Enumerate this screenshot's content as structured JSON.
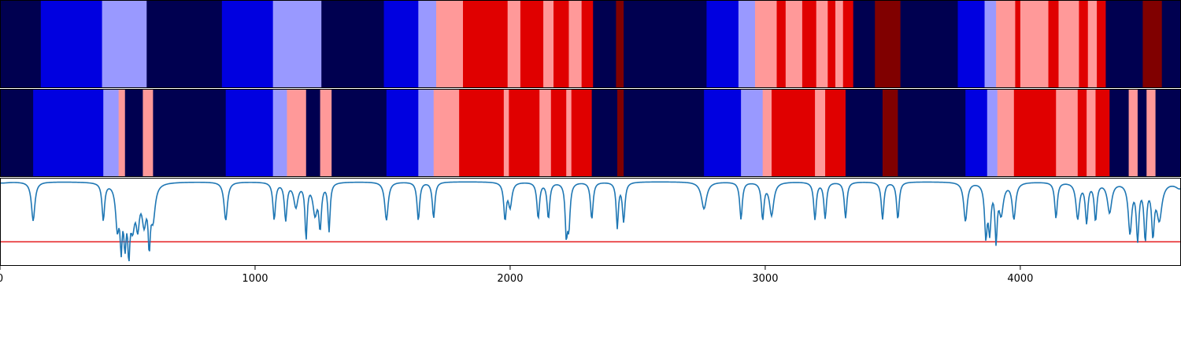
{
  "chart_data": {
    "type": "heatmap",
    "title": "",
    "xlabel": "",
    "ylabel": "",
    "xlim": [
      0,
      4630
    ],
    "grid": false,
    "xticks": [
      0,
      1000,
      2000,
      3000,
      4000
    ],
    "xtick_labels": [
      "0",
      "1000",
      "2000",
      "3000",
      "4000"
    ],
    "palette": {
      "0": "#000050",
      "1": "#0000e0",
      "2": "#9999ff",
      "3": "#ff9999",
      "4": "#e00000",
      "5": "#800000"
    },
    "rows": [
      {
        "segments": [
          [
            0,
            160,
            0
          ],
          [
            160,
            400,
            1
          ],
          [
            400,
            575,
            2
          ],
          [
            575,
            870,
            0
          ],
          [
            870,
            1070,
            1
          ],
          [
            1070,
            1260,
            2
          ],
          [
            1260,
            1505,
            0
          ],
          [
            1505,
            1640,
            1
          ],
          [
            1640,
            1710,
            2
          ],
          [
            1710,
            1815,
            3
          ],
          [
            1815,
            1990,
            4
          ],
          [
            1990,
            2040,
            3
          ],
          [
            2040,
            2130,
            4
          ],
          [
            2130,
            2170,
            3
          ],
          [
            2170,
            2230,
            4
          ],
          [
            2230,
            2280,
            3
          ],
          [
            2280,
            2325,
            4
          ],
          [
            2325,
            2415,
            0
          ],
          [
            2415,
            2445,
            5
          ],
          [
            2445,
            2770,
            0
          ],
          [
            2770,
            2895,
            1
          ],
          [
            2895,
            2960,
            2
          ],
          [
            2960,
            3045,
            3
          ],
          [
            3045,
            3080,
            4
          ],
          [
            3080,
            3145,
            3
          ],
          [
            3145,
            3200,
            4
          ],
          [
            3200,
            3245,
            3
          ],
          [
            3245,
            3275,
            4
          ],
          [
            3275,
            3305,
            3
          ],
          [
            3305,
            3345,
            4
          ],
          [
            3345,
            3430,
            0
          ],
          [
            3430,
            3530,
            5
          ],
          [
            3530,
            3755,
            0
          ],
          [
            3755,
            3860,
            1
          ],
          [
            3860,
            3905,
            2
          ],
          [
            3905,
            3980,
            3
          ],
          [
            3980,
            4000,
            4
          ],
          [
            4000,
            4110,
            3
          ],
          [
            4110,
            4150,
            4
          ],
          [
            4150,
            4230,
            3
          ],
          [
            4230,
            4265,
            4
          ],
          [
            4265,
            4300,
            3
          ],
          [
            4300,
            4335,
            4
          ],
          [
            4335,
            4480,
            0
          ],
          [
            4480,
            4555,
            5
          ],
          [
            4555,
            4630,
            0
          ]
        ]
      },
      {
        "segments": [
          [
            0,
            130,
            0
          ],
          [
            130,
            405,
            1
          ],
          [
            405,
            465,
            2
          ],
          [
            465,
            490,
            3
          ],
          [
            490,
            560,
            0
          ],
          [
            560,
            600,
            3
          ],
          [
            600,
            885,
            0
          ],
          [
            885,
            1070,
            1
          ],
          [
            1070,
            1125,
            2
          ],
          [
            1125,
            1200,
            3
          ],
          [
            1200,
            1255,
            0
          ],
          [
            1255,
            1300,
            3
          ],
          [
            1300,
            1515,
            0
          ],
          [
            1515,
            1640,
            1
          ],
          [
            1640,
            1700,
            2
          ],
          [
            1700,
            1800,
            3
          ],
          [
            1800,
            1975,
            4
          ],
          [
            1975,
            1995,
            3
          ],
          [
            1995,
            2115,
            4
          ],
          [
            2115,
            2160,
            3
          ],
          [
            2160,
            2220,
            4
          ],
          [
            2220,
            2240,
            3
          ],
          [
            2240,
            2320,
            4
          ],
          [
            2320,
            2420,
            0
          ],
          [
            2420,
            2445,
            5
          ],
          [
            2445,
            2760,
            0
          ],
          [
            2760,
            2905,
            1
          ],
          [
            2905,
            2990,
            2
          ],
          [
            2990,
            3025,
            3
          ],
          [
            3025,
            3195,
            4
          ],
          [
            3195,
            3235,
            3
          ],
          [
            3235,
            3315,
            4
          ],
          [
            3315,
            3460,
            0
          ],
          [
            3460,
            3520,
            5
          ],
          [
            3520,
            3785,
            0
          ],
          [
            3785,
            3870,
            1
          ],
          [
            3870,
            3910,
            2
          ],
          [
            3910,
            3975,
            3
          ],
          [
            3975,
            4140,
            4
          ],
          [
            4140,
            4225,
            3
          ],
          [
            4225,
            4260,
            4
          ],
          [
            4260,
            4295,
            3
          ],
          [
            4295,
            4350,
            4
          ],
          [
            4350,
            4425,
            0
          ],
          [
            4425,
            4460,
            3
          ],
          [
            4460,
            4495,
            0
          ],
          [
            4495,
            4530,
            3
          ],
          [
            4530,
            4630,
            0
          ]
        ]
      }
    ],
    "line_panel": {
      "ylim": [
        -0.4,
        1.05
      ],
      "threshold": {
        "value": 0,
        "color": "#e41a1c"
      },
      "line_color": "#1f77b4",
      "baseline": 1.0,
      "dips": [
        [
          8,
          0.98,
          30
        ],
        [
          130,
          0.35,
          8
        ],
        [
          405,
          0.38,
          6
        ],
        [
          460,
          0.3,
          8
        ],
        [
          475,
          0.1,
          5
        ],
        [
          490,
          0.12,
          6
        ],
        [
          505,
          0.05,
          5
        ],
        [
          520,
          0.38,
          10
        ],
        [
          540,
          0.4,
          8
        ],
        [
          565,
          0.4,
          10
        ],
        [
          585,
          0.12,
          5
        ],
        [
          600,
          0.45,
          10
        ],
        [
          885,
          0.36,
          8
        ],
        [
          1075,
          0.38,
          6
        ],
        [
          1120,
          0.38,
          6
        ],
        [
          1160,
          0.6,
          10
        ],
        [
          1200,
          0.1,
          5
        ],
        [
          1235,
          0.5,
          10
        ],
        [
          1255,
          0.3,
          6
        ],
        [
          1290,
          0.2,
          5
        ],
        [
          1515,
          0.36,
          8
        ],
        [
          1640,
          0.36,
          6
        ],
        [
          1700,
          0.4,
          6
        ],
        [
          1980,
          0.4,
          6
        ],
        [
          2000,
          0.6,
          8
        ],
        [
          2110,
          0.4,
          6
        ],
        [
          2150,
          0.4,
          6
        ],
        [
          2220,
          0.2,
          5
        ],
        [
          2230,
          0.3,
          6
        ],
        [
          2320,
          0.38,
          6
        ],
        [
          2420,
          0.25,
          5
        ],
        [
          2445,
          0.35,
          6
        ],
        [
          2760,
          0.55,
          12
        ],
        [
          2905,
          0.38,
          6
        ],
        [
          2990,
          0.4,
          6
        ],
        [
          3025,
          0.45,
          10
        ],
        [
          3195,
          0.38,
          6
        ],
        [
          3235,
          0.4,
          6
        ],
        [
          3315,
          0.4,
          6
        ],
        [
          3460,
          0.38,
          6
        ],
        [
          3520,
          0.38,
          6
        ],
        [
          3785,
          0.35,
          8
        ],
        [
          3865,
          0.15,
          6
        ],
        [
          3880,
          0.25,
          6
        ],
        [
          3905,
          0.1,
          5
        ],
        [
          3925,
          0.5,
          10
        ],
        [
          3975,
          0.4,
          8
        ],
        [
          4140,
          0.4,
          6
        ],
        [
          4225,
          0.4,
          8
        ],
        [
          4260,
          0.35,
          6
        ],
        [
          4295,
          0.38,
          6
        ],
        [
          4350,
          0.5,
          10
        ],
        [
          4430,
          0.18,
          8
        ],
        [
          4460,
          0.1,
          6
        ],
        [
          4490,
          0.1,
          6
        ],
        [
          4520,
          0.2,
          6
        ],
        [
          4545,
          0.4,
          12
        ],
        [
          4625,
          0.9,
          20
        ]
      ]
    }
  }
}
